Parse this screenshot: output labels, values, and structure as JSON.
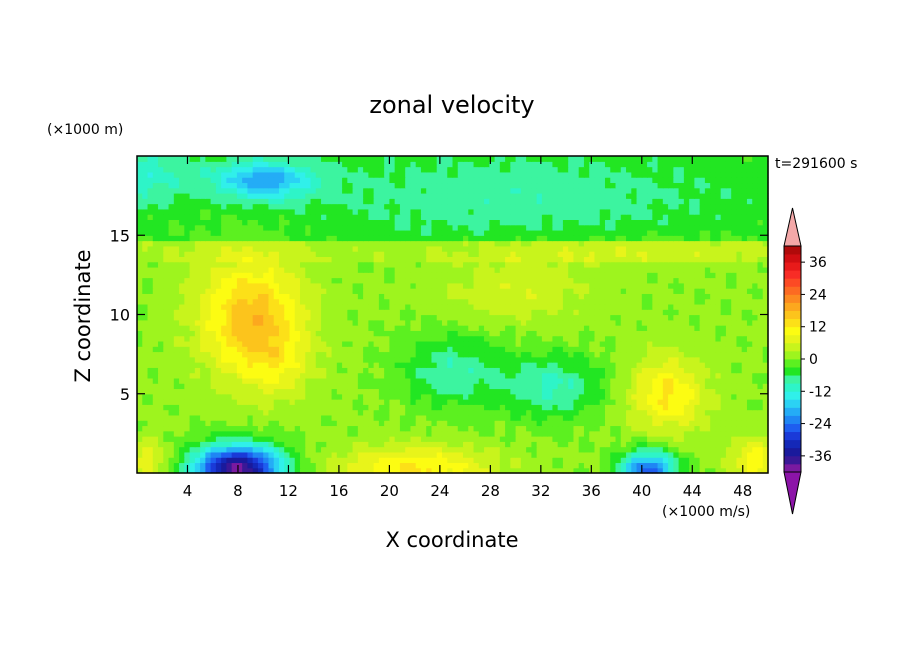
{
  "chart_data": {
    "type": "heatmap",
    "title": "zonal velocity",
    "xlabel": "X coordinate",
    "ylabel": "Z coordinate",
    "x_unit": "(×1000 m/s)",
    "y_unit": "(×1000 m)",
    "time_label": "t=291600 s",
    "xlim": [
      0,
      50
    ],
    "ylim": [
      0,
      20
    ],
    "x_ticks": [
      4,
      8,
      12,
      16,
      20,
      24,
      28,
      32,
      36,
      40,
      44,
      48
    ],
    "y_ticks": [
      5,
      10,
      15
    ],
    "colorbar": {
      "levels": [
        -42,
        -39,
        -36,
        -33,
        -30,
        -27,
        -24,
        -21,
        -18,
        -15,
        -12,
        -9,
        -6,
        -3,
        0,
        3,
        6,
        9,
        12,
        15,
        18,
        21,
        24,
        27,
        30,
        33,
        36,
        39,
        42
      ],
      "colors": [
        "#7a1aa0",
        "#3a1896",
        "#1a1a9c",
        "#1428b8",
        "#1a3ad8",
        "#1e5ef0",
        "#1f86f4",
        "#24acf6",
        "#2bd2f4",
        "#30f0ea",
        "#2ef4c8",
        "#3cf4a0",
        "#22e622",
        "#5cf020",
        "#9ef41e",
        "#c8f41c",
        "#e8f41a",
        "#fcfc12",
        "#fce018",
        "#fcc41c",
        "#fca81e",
        "#fc8a20",
        "#fc6a22",
        "#fc4a24",
        "#f82c26",
        "#e81a1a",
        "#d00e12",
        "#b00a0a"
      ],
      "under_color": "#8c14a8",
      "over_color": "#f4a8a8",
      "tick_labels": [
        "36",
        "24",
        "12",
        "0",
        "-12",
        "-24",
        "-36"
      ],
      "tick_values": [
        36,
        24,
        12,
        0,
        -12,
        -24,
        -36
      ]
    },
    "features": [
      {
        "x": 9,
        "z": 10,
        "sx": 4,
        "sz": 3.6,
        "amp": 16
      },
      {
        "x": 11,
        "z": 7,
        "sx": 3,
        "sz": 2.5,
        "amp": 6
      },
      {
        "x": 42,
        "z": 5,
        "sx": 3,
        "sz": 2.3,
        "amp": 12
      },
      {
        "x": 22,
        "z": 0.3,
        "sx": 6,
        "sz": 1.4,
        "amp": 12
      },
      {
        "x": 49,
        "z": 0.8,
        "sx": 2,
        "sz": 1.4,
        "amp": 10
      },
      {
        "x": 1,
        "z": 0.8,
        "sx": 1.5,
        "sz": 1.3,
        "amp": 8
      },
      {
        "x": 8,
        "z": 0.3,
        "sx": 3.5,
        "sz": 1.5,
        "amp": -40
      },
      {
        "x": 40.5,
        "z": 0.2,
        "sx": 2.2,
        "sz": 1.2,
        "amp": -26
      },
      {
        "x": 25,
        "z": 6.5,
        "sx": 4,
        "sz": 2.3,
        "amp": -9
      },
      {
        "x": 33,
        "z": 5.5,
        "sx": 4,
        "sz": 2,
        "amp": -10
      },
      {
        "x": 10,
        "z": 18.5,
        "sx": 4,
        "sz": 1.2,
        "amp": -16
      },
      {
        "x": 30,
        "z": 17.5,
        "sx": 18,
        "sz": 3,
        "amp": -5
      },
      {
        "x": 30,
        "z": 11.5,
        "sx": 6,
        "sz": 2,
        "amp": 5
      },
      {
        "x": 38,
        "z": 14,
        "sx": 12,
        "sz": 1,
        "amp": 4
      },
      {
        "x": 0,
        "z": 19,
        "sx": 4,
        "sz": 2,
        "amp": -8
      }
    ]
  }
}
